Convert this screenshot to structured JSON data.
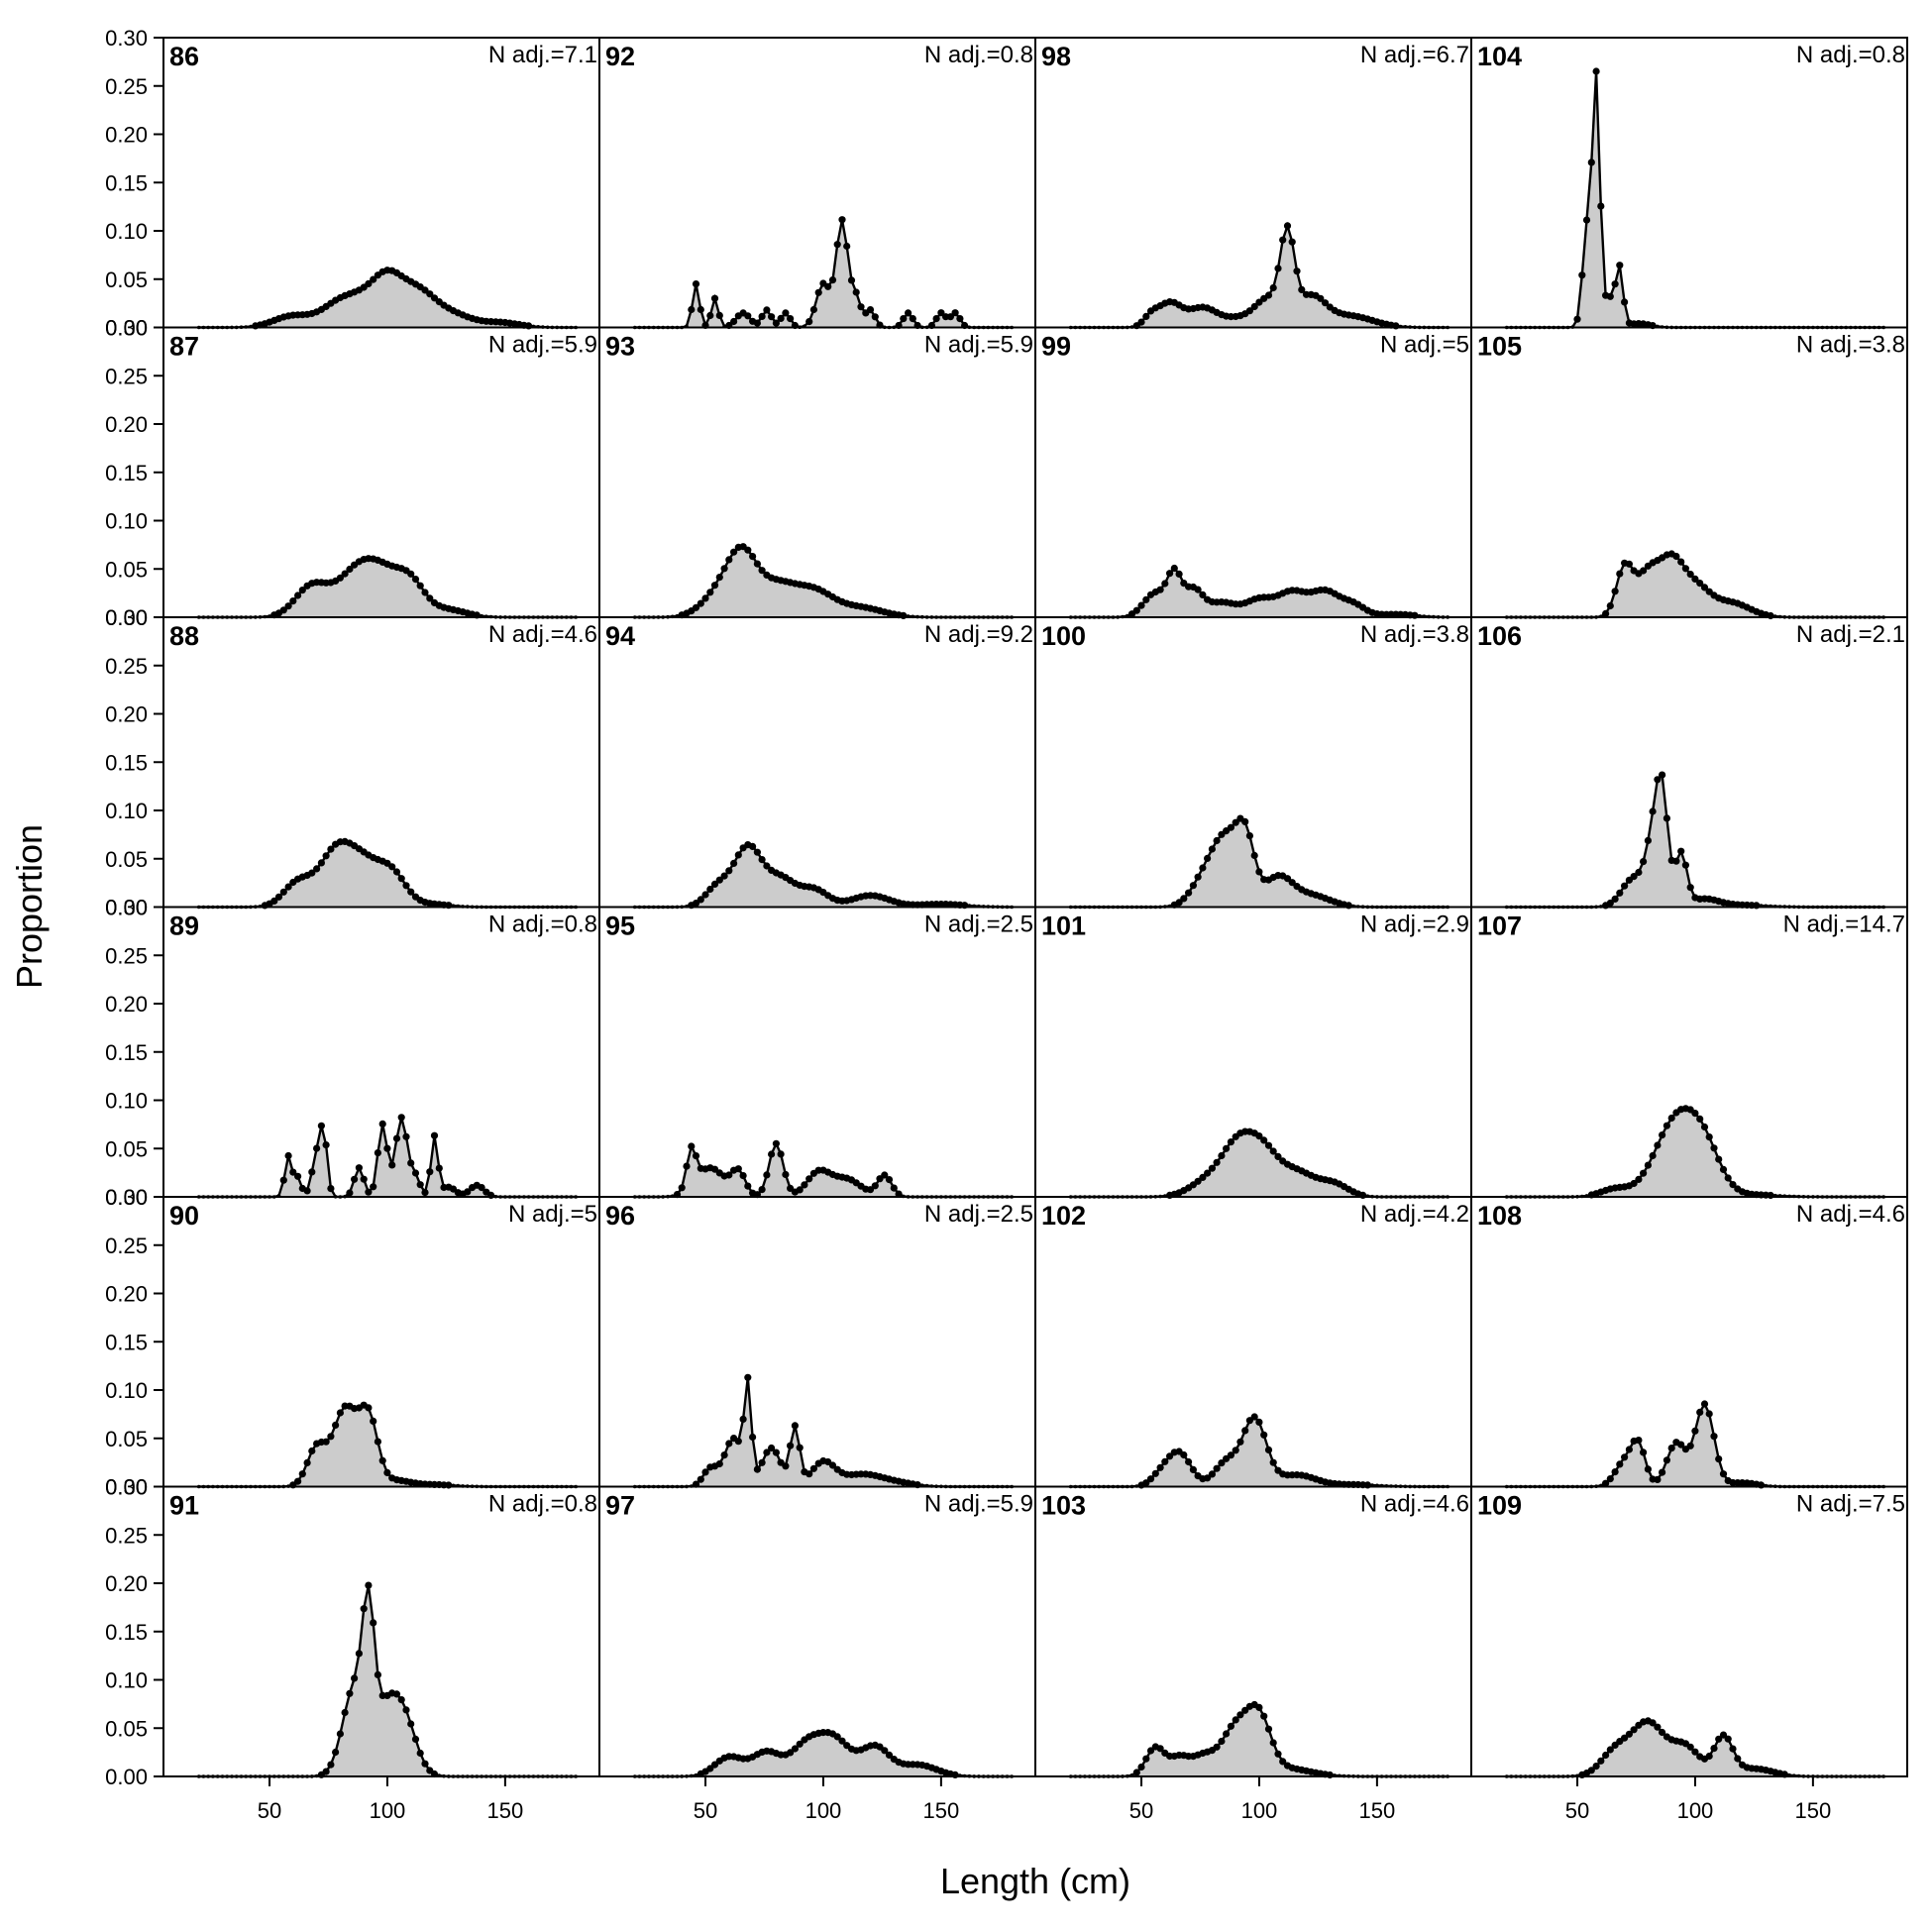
{
  "chart_data": {
    "type": "area",
    "xlabel": "Length (cm)",
    "ylabel": "Proportion",
    "xlim": [
      5,
      190
    ],
    "ylim": [
      0,
      0.3
    ],
    "x_ticks": [
      50,
      100,
      150
    ],
    "y_ticks": [
      0.0,
      0.05,
      0.1,
      0.15,
      0.2,
      0.25,
      0.3
    ],
    "y_tick_labels": [
      "0.00",
      "0.05",
      "0.10",
      "0.15",
      "0.20",
      "0.25",
      "0.30"
    ],
    "x_tick_labels": [
      "50",
      "100",
      "150"
    ],
    "grid": false,
    "legend": "none",
    "fill_color": "#cccccc",
    "line_color": "#000000",
    "length_bins": {
      "start": 20,
      "end": 180,
      "step": 2
    },
    "layout": {
      "columns": 4,
      "rows": 6,
      "order": "column-major"
    },
    "panels": [
      {
        "id": "86",
        "n_adj": "N adj.=7.1",
        "peaks": [
          [
            60,
            0.012,
            8
          ],
          [
            78,
            0.018,
            7
          ],
          [
            90,
            0.028,
            8
          ],
          [
            100,
            0.034,
            6
          ],
          [
            112,
            0.038,
            8
          ],
          [
            128,
            0.012,
            8
          ],
          [
            148,
            0.005,
            8
          ]
        ]
      },
      {
        "id": "87",
        "n_adj": "N adj.=5.9",
        "peaks": [
          [
            68,
            0.032,
            7
          ],
          [
            86,
            0.04,
            8
          ],
          [
            98,
            0.04,
            8
          ],
          [
            110,
            0.03,
            6
          ],
          [
            125,
            0.008,
            8
          ]
        ]
      },
      {
        "id": "88",
        "n_adj": "N adj.=4.6",
        "peaks": [
          [
            62,
            0.025,
            6
          ],
          [
            78,
            0.055,
            7
          ],
          [
            90,
            0.04,
            7
          ],
          [
            102,
            0.032,
            6
          ],
          [
            118,
            0.003,
            8
          ]
        ]
      },
      {
        "id": "89",
        "n_adj": "N adj.=0.8",
        "peaks": [
          [
            58,
            0.042,
            1.5
          ],
          [
            62,
            0.02,
            1.5
          ],
          [
            70,
            0.042,
            2
          ],
          [
            73,
            0.06,
            1.5
          ],
          [
            88,
            0.03,
            2
          ],
          [
            98,
            0.075,
            2
          ],
          [
            106,
            0.082,
            2.5
          ],
          [
            112,
            0.02,
            2
          ],
          [
            120,
            0.062,
            1.5
          ],
          [
            126,
            0.01,
            3
          ],
          [
            138,
            0.012,
            3
          ]
        ]
      },
      {
        "id": "90",
        "n_adj": "N adj.=5",
        "peaks": [
          [
            70,
            0.04,
            4
          ],
          [
            82,
            0.08,
            5
          ],
          [
            92,
            0.07,
            4
          ],
          [
            104,
            0.006,
            6
          ],
          [
            120,
            0.002,
            8
          ]
        ]
      },
      {
        "id": "91",
        "n_adj": "N adj.=0.8",
        "peaks": [
          [
            86,
            0.09,
            5
          ],
          [
            92,
            0.125,
            2.5
          ],
          [
            100,
            0.07,
            6
          ],
          [
            108,
            0.04,
            5
          ]
        ]
      },
      {
        "id": "92",
        "n_adj": "N adj.=0.8",
        "peaks": [
          [
            46,
            0.045,
            1.5
          ],
          [
            54,
            0.03,
            1.5
          ],
          [
            66,
            0.015,
            3
          ],
          [
            76,
            0.018,
            2
          ],
          [
            84,
            0.015,
            2
          ],
          [
            100,
            0.045,
            3
          ],
          [
            108,
            0.11,
            2.5
          ],
          [
            114,
            0.03,
            2
          ],
          [
            120,
            0.018,
            2
          ],
          [
            136,
            0.015,
            2
          ],
          [
            150,
            0.015,
            2
          ],
          [
            156,
            0.015,
            2
          ]
        ]
      },
      {
        "id": "93",
        "n_adj": "N adj.=5.9",
        "peaks": [
          [
            58,
            0.03,
            8
          ],
          [
            66,
            0.048,
            6
          ],
          [
            80,
            0.032,
            8
          ],
          [
            96,
            0.025,
            8
          ],
          [
            115,
            0.01,
            10
          ]
        ]
      },
      {
        "id": "94",
        "n_adj": "N adj.=9.2",
        "peaks": [
          [
            55,
            0.02,
            5
          ],
          [
            68,
            0.062,
            6
          ],
          [
            82,
            0.028,
            6
          ],
          [
            96,
            0.018,
            6
          ],
          [
            120,
            0.012,
            8
          ],
          [
            150,
            0.003,
            10
          ]
        ]
      },
      {
        "id": "95",
        "n_adj": "N adj.=2.5",
        "peaks": [
          [
            44,
            0.04,
            2
          ],
          [
            52,
            0.03,
            6
          ],
          [
            64,
            0.025,
            3
          ],
          [
            80,
            0.055,
            3
          ],
          [
            98,
            0.025,
            5
          ],
          [
            110,
            0.018,
            6
          ],
          [
            126,
            0.022,
            3
          ]
        ]
      },
      {
        "id": "96",
        "n_adj": "N adj.=2.5",
        "peaks": [
          [
            52,
            0.018,
            3
          ],
          [
            62,
            0.05,
            4
          ],
          [
            68,
            0.095,
            1.5
          ],
          [
            78,
            0.04,
            4
          ],
          [
            88,
            0.06,
            2
          ],
          [
            100,
            0.025,
            5
          ],
          [
            116,
            0.012,
            8
          ],
          [
            130,
            0.004,
            8
          ]
        ]
      },
      {
        "id": "97",
        "n_adj": "N adj.=5.9",
        "peaks": [
          [
            60,
            0.02,
            6
          ],
          [
            76,
            0.025,
            6
          ],
          [
            92,
            0.028,
            6
          ],
          [
            104,
            0.04,
            7
          ],
          [
            122,
            0.03,
            6
          ],
          [
            140,
            0.012,
            8
          ]
        ]
      },
      {
        "id": "98",
        "n_adj": "N adj.=6.7",
        "peaks": [
          [
            54,
            0.01,
            3
          ],
          [
            62,
            0.025,
            5
          ],
          [
            76,
            0.02,
            6
          ],
          [
            90,
            0.008,
            6
          ],
          [
            104,
            0.03,
            6
          ],
          [
            112,
            0.085,
            3
          ],
          [
            122,
            0.03,
            6
          ],
          [
            138,
            0.012,
            10
          ]
        ]
      },
      {
        "id": "99",
        "n_adj": "N adj.=5",
        "peaks": [
          [
            56,
            0.025,
            5
          ],
          [
            64,
            0.04,
            3
          ],
          [
            72,
            0.028,
            4
          ],
          [
            84,
            0.015,
            6
          ],
          [
            100,
            0.018,
            6
          ],
          [
            114,
            0.025,
            6
          ],
          [
            128,
            0.026,
            6
          ],
          [
            140,
            0.012,
            5
          ],
          [
            158,
            0.003,
            8
          ]
        ]
      },
      {
        "id": "100",
        "n_adj": "N adj.=3.8",
        "peaks": [
          [
            78,
            0.035,
            6
          ],
          [
            86,
            0.055,
            5
          ],
          [
            94,
            0.07,
            4
          ],
          [
            108,
            0.03,
            6
          ],
          [
            122,
            0.012,
            8
          ]
        ]
      },
      {
        "id": "101",
        "n_adj": "N adj.=2.9",
        "peaks": [
          [
            80,
            0.02,
            8
          ],
          [
            90,
            0.035,
            6
          ],
          [
            100,
            0.05,
            7
          ],
          [
            116,
            0.025,
            8
          ],
          [
            132,
            0.012,
            6
          ]
        ]
      },
      {
        "id": "102",
        "n_adj": "N adj.=4.2",
        "peaks": [
          [
            58,
            0.01,
            4
          ],
          [
            66,
            0.035,
            5
          ],
          [
            86,
            0.025,
            5
          ],
          [
            98,
            0.07,
            5
          ],
          [
            116,
            0.012,
            8
          ],
          [
            140,
            0.002,
            10
          ]
        ]
      },
      {
        "id": "103",
        "n_adj": "N adj.=4.6",
        "peaks": [
          [
            56,
            0.03,
            4
          ],
          [
            66,
            0.018,
            4
          ],
          [
            76,
            0.02,
            5
          ],
          [
            90,
            0.05,
            6
          ],
          [
            100,
            0.055,
            5
          ],
          [
            112,
            0.008,
            10
          ]
        ]
      },
      {
        "id": "104",
        "n_adj": "N adj.=0.8",
        "peaks": [
          [
            54,
            0.1,
            1.8
          ],
          [
            58,
            0.255,
            1.6
          ],
          [
            64,
            0.03,
            2.5
          ],
          [
            68,
            0.055,
            1.5
          ],
          [
            76,
            0.004,
            5
          ]
        ]
      },
      {
        "id": "105",
        "n_adj": "N adj.=3.8",
        "peaks": [
          [
            70,
            0.05,
            3.5
          ],
          [
            80,
            0.045,
            5
          ],
          [
            90,
            0.052,
            5
          ],
          [
            100,
            0.03,
            6
          ],
          [
            115,
            0.015,
            8
          ]
        ]
      },
      {
        "id": "106",
        "n_adj": "N adj.=2.1",
        "peaks": [
          [
            74,
            0.03,
            5
          ],
          [
            82,
            0.06,
            3
          ],
          [
            86,
            0.11,
            2.5
          ],
          [
            94,
            0.055,
            2.5
          ],
          [
            104,
            0.008,
            6
          ],
          [
            120,
            0.002,
            10
          ]
        ]
      },
      {
        "id": "107",
        "n_adj": "N adj.=14.7",
        "peaks": [
          [
            66,
            0.008,
            6
          ],
          [
            92,
            0.078,
            9
          ],
          [
            104,
            0.04,
            7
          ],
          [
            125,
            0.002,
            10
          ]
        ]
      },
      {
        "id": "108",
        "n_adj": "N adj.=4.6",
        "peaks": [
          [
            70,
            0.025,
            4
          ],
          [
            76,
            0.04,
            3
          ],
          [
            92,
            0.045,
            4
          ],
          [
            104,
            0.085,
            4
          ],
          [
            120,
            0.004,
            6
          ]
        ]
      },
      {
        "id": "109",
        "n_adj": "N adj.=7.5",
        "peaks": [
          [
            66,
            0.025,
            6
          ],
          [
            80,
            0.055,
            7
          ],
          [
            96,
            0.03,
            6
          ],
          [
            112,
            0.04,
            4
          ],
          [
            125,
            0.008,
            8
          ]
        ]
      }
    ]
  }
}
